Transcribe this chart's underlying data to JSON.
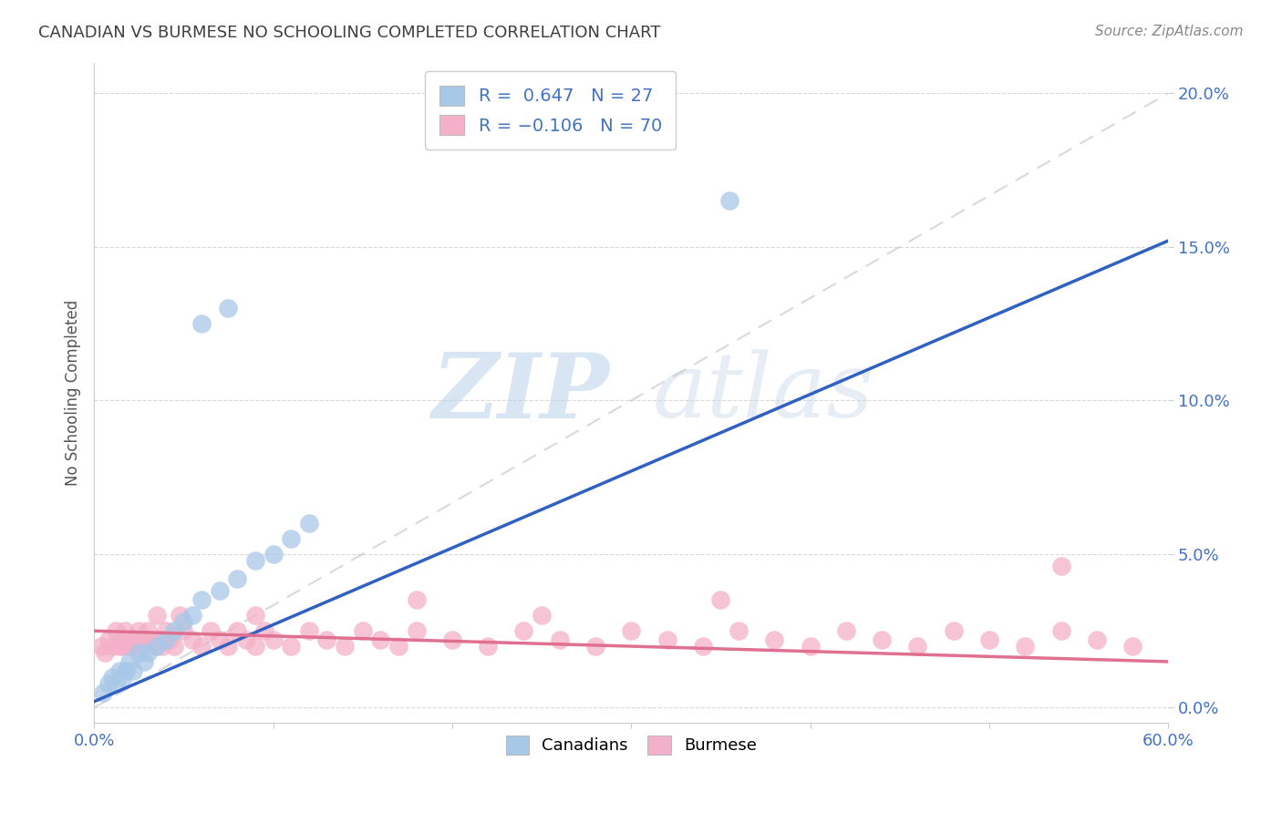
{
  "title": "CANADIAN VS BURMESE NO SCHOOLING COMPLETED CORRELATION CHART",
  "source_text": "Source: ZipAtlas.com",
  "ylabel": "No Schooling Completed",
  "xlim": [
    0.0,
    0.6
  ],
  "ylim": [
    -0.005,
    0.21
  ],
  "x_ticks": [
    0.0,
    0.1,
    0.2,
    0.3,
    0.4,
    0.5,
    0.6
  ],
  "x_tick_labels": [
    "0.0%",
    "",
    "",
    "",
    "",
    "",
    "60.0%"
  ],
  "y_ticks": [
    0.0,
    0.05,
    0.1,
    0.15,
    0.2
  ],
  "y_tick_labels": [
    "0.0%",
    "5.0%",
    "10.0%",
    "15.0%",
    "20.0%"
  ],
  "canadian_color": "#a8c8e8",
  "burmese_color": "#f4b0c8",
  "canadian_line_color": "#3060c0",
  "burmese_line_color": "#e07090",
  "ref_line_color": "#c0c0c0",
  "legend_label_canadian": "Canadians",
  "legend_label_burmese": "Burmese",
  "watermark_zip": "ZIP",
  "watermark_atlas": "atlas",
  "title_color": "#404040",
  "source_color": "#888888",
  "tick_color": "#4472c4",
  "ytick_color": "#4472c4",
  "can_x": [
    0.005,
    0.008,
    0.01,
    0.012,
    0.014,
    0.016,
    0.018,
    0.02,
    0.022,
    0.025,
    0.028,
    0.03,
    0.035,
    0.04,
    0.045,
    0.05,
    0.055,
    0.06,
    0.07,
    0.08,
    0.09,
    0.1,
    0.11,
    0.12,
    0.355,
    0.06,
    0.075
  ],
  "can_y": [
    0.005,
    0.008,
    0.01,
    0.008,
    0.012,
    0.01,
    0.012,
    0.015,
    0.012,
    0.018,
    0.015,
    0.018,
    0.02,
    0.022,
    0.025,
    0.028,
    0.03,
    0.035,
    0.038,
    0.042,
    0.048,
    0.05,
    0.055,
    0.06,
    0.165,
    0.125,
    0.13
  ],
  "bur_x": [
    0.004,
    0.006,
    0.008,
    0.01,
    0.012,
    0.014,
    0.015,
    0.016,
    0.017,
    0.018,
    0.02,
    0.022,
    0.024,
    0.025,
    0.026,
    0.028,
    0.03,
    0.032,
    0.034,
    0.035,
    0.036,
    0.038,
    0.04,
    0.042,
    0.045,
    0.048,
    0.05,
    0.055,
    0.06,
    0.065,
    0.07,
    0.075,
    0.08,
    0.085,
    0.09,
    0.095,
    0.1,
    0.11,
    0.12,
    0.13,
    0.14,
    0.15,
    0.16,
    0.17,
    0.18,
    0.2,
    0.22,
    0.24,
    0.26,
    0.28,
    0.3,
    0.32,
    0.34,
    0.36,
    0.38,
    0.4,
    0.42,
    0.44,
    0.46,
    0.48,
    0.5,
    0.52,
    0.54,
    0.56,
    0.58,
    0.54,
    0.35,
    0.25,
    0.18,
    0.09
  ],
  "bur_y": [
    0.02,
    0.018,
    0.022,
    0.02,
    0.025,
    0.02,
    0.022,
    0.02,
    0.025,
    0.022,
    0.02,
    0.022,
    0.02,
    0.025,
    0.022,
    0.02,
    0.025,
    0.022,
    0.02,
    0.03,
    0.022,
    0.02,
    0.025,
    0.022,
    0.02,
    0.03,
    0.025,
    0.022,
    0.02,
    0.025,
    0.022,
    0.02,
    0.025,
    0.022,
    0.02,
    0.025,
    0.022,
    0.02,
    0.025,
    0.022,
    0.02,
    0.025,
    0.022,
    0.02,
    0.025,
    0.022,
    0.02,
    0.025,
    0.022,
    0.02,
    0.025,
    0.022,
    0.02,
    0.025,
    0.022,
    0.02,
    0.025,
    0.022,
    0.02,
    0.025,
    0.022,
    0.02,
    0.025,
    0.022,
    0.02,
    0.046,
    0.035,
    0.03,
    0.035,
    0.03
  ]
}
